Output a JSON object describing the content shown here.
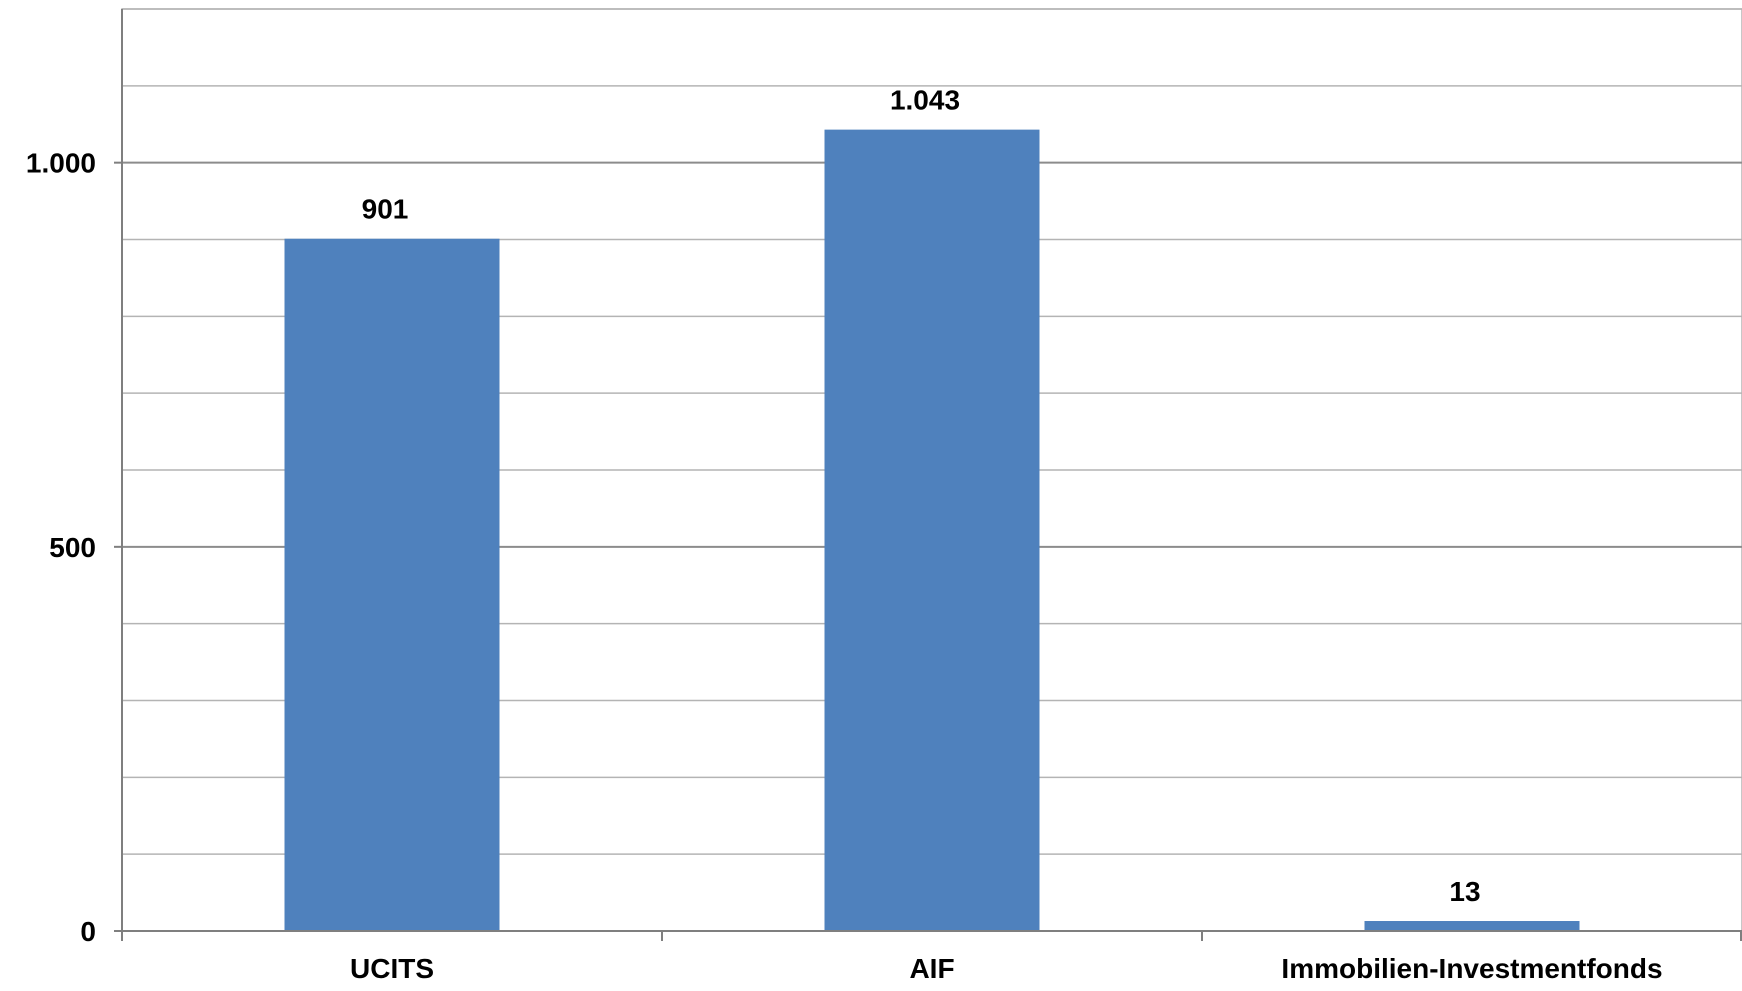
{
  "chart_data": {
    "type": "bar",
    "title": "",
    "xlabel": "",
    "ylabel": "",
    "categories": [
      "UCITS",
      "AIF",
      "Immobilien-Investmentfonds"
    ],
    "values": [
      901,
      1043,
      13
    ],
    "data_labels": [
      "901",
      "1.043",
      "13"
    ],
    "ylim": [
      0,
      1200
    ],
    "major_ticks": [
      0,
      500,
      1000
    ],
    "major_tick_labels": [
      "0",
      "500",
      "1.000"
    ],
    "minor_gridline_step": 100,
    "grid": true,
    "legend": "none",
    "colors": {
      "bar": "#4f81bd",
      "gridline": "#b4b4b4",
      "major_gridline": "#8c8c8c",
      "axis": "#7f7f7f"
    }
  }
}
